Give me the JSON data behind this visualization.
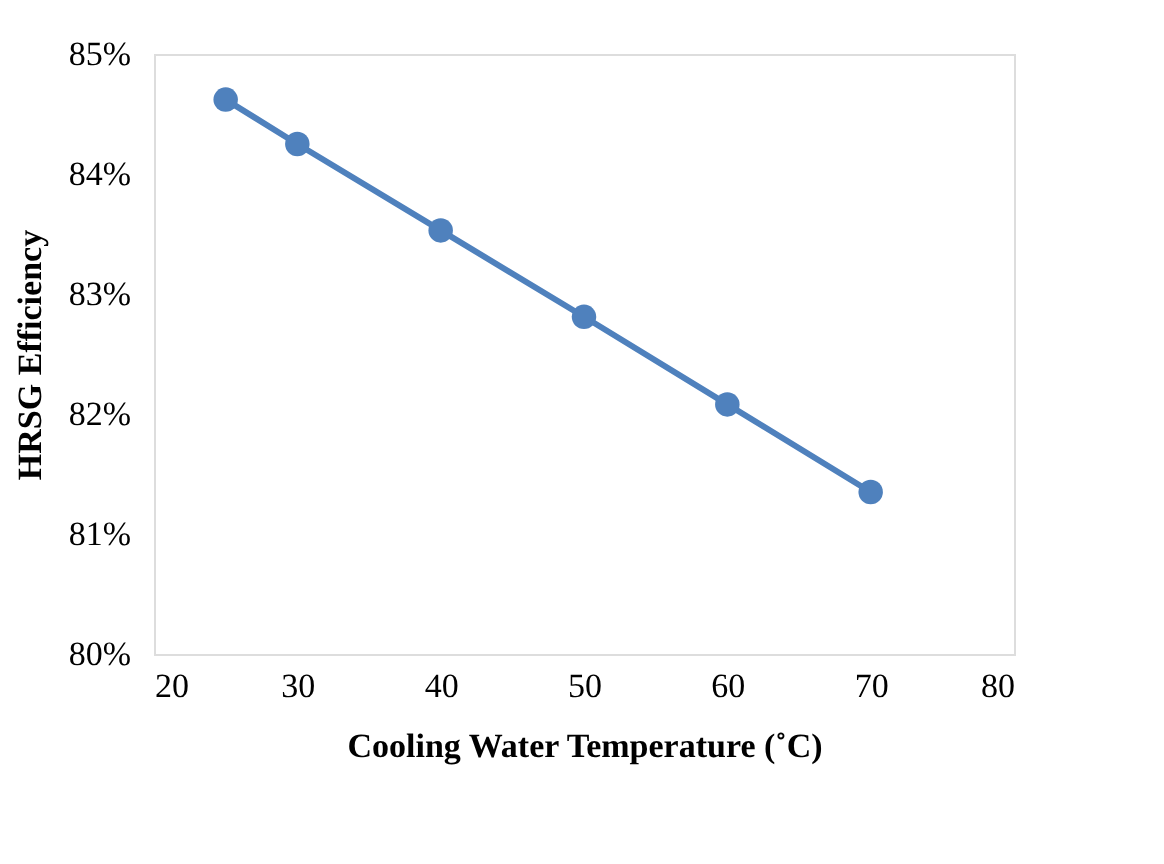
{
  "chart_data": {
    "type": "line",
    "xlabel": "Cooling Water Temperature (˚C)",
    "ylabel": "HRSG Efficiency",
    "x": [
      25,
      30,
      40,
      50,
      60,
      70
    ],
    "series": [
      {
        "color": "#4f81bd",
        "values": [
          84.62,
          84.25,
          83.53,
          82.81,
          82.08,
          81.35
        ]
      }
    ],
    "xlim": [
      20,
      80
    ],
    "xticks": [
      20,
      30,
      40,
      50,
      60,
      70,
      80
    ],
    "ylim": [
      80,
      85
    ],
    "yticks": [
      {
        "value": 80,
        "label": "80%"
      },
      {
        "value": 81,
        "label": "81%"
      },
      {
        "value": 82,
        "label": "82%"
      },
      {
        "value": 83,
        "label": "83%"
      },
      {
        "value": 84,
        "label": "84%"
      },
      {
        "value": 85,
        "label": "85%"
      }
    ],
    "grid": false,
    "legend": false,
    "marker": "circle",
    "line_style": "solid"
  }
}
